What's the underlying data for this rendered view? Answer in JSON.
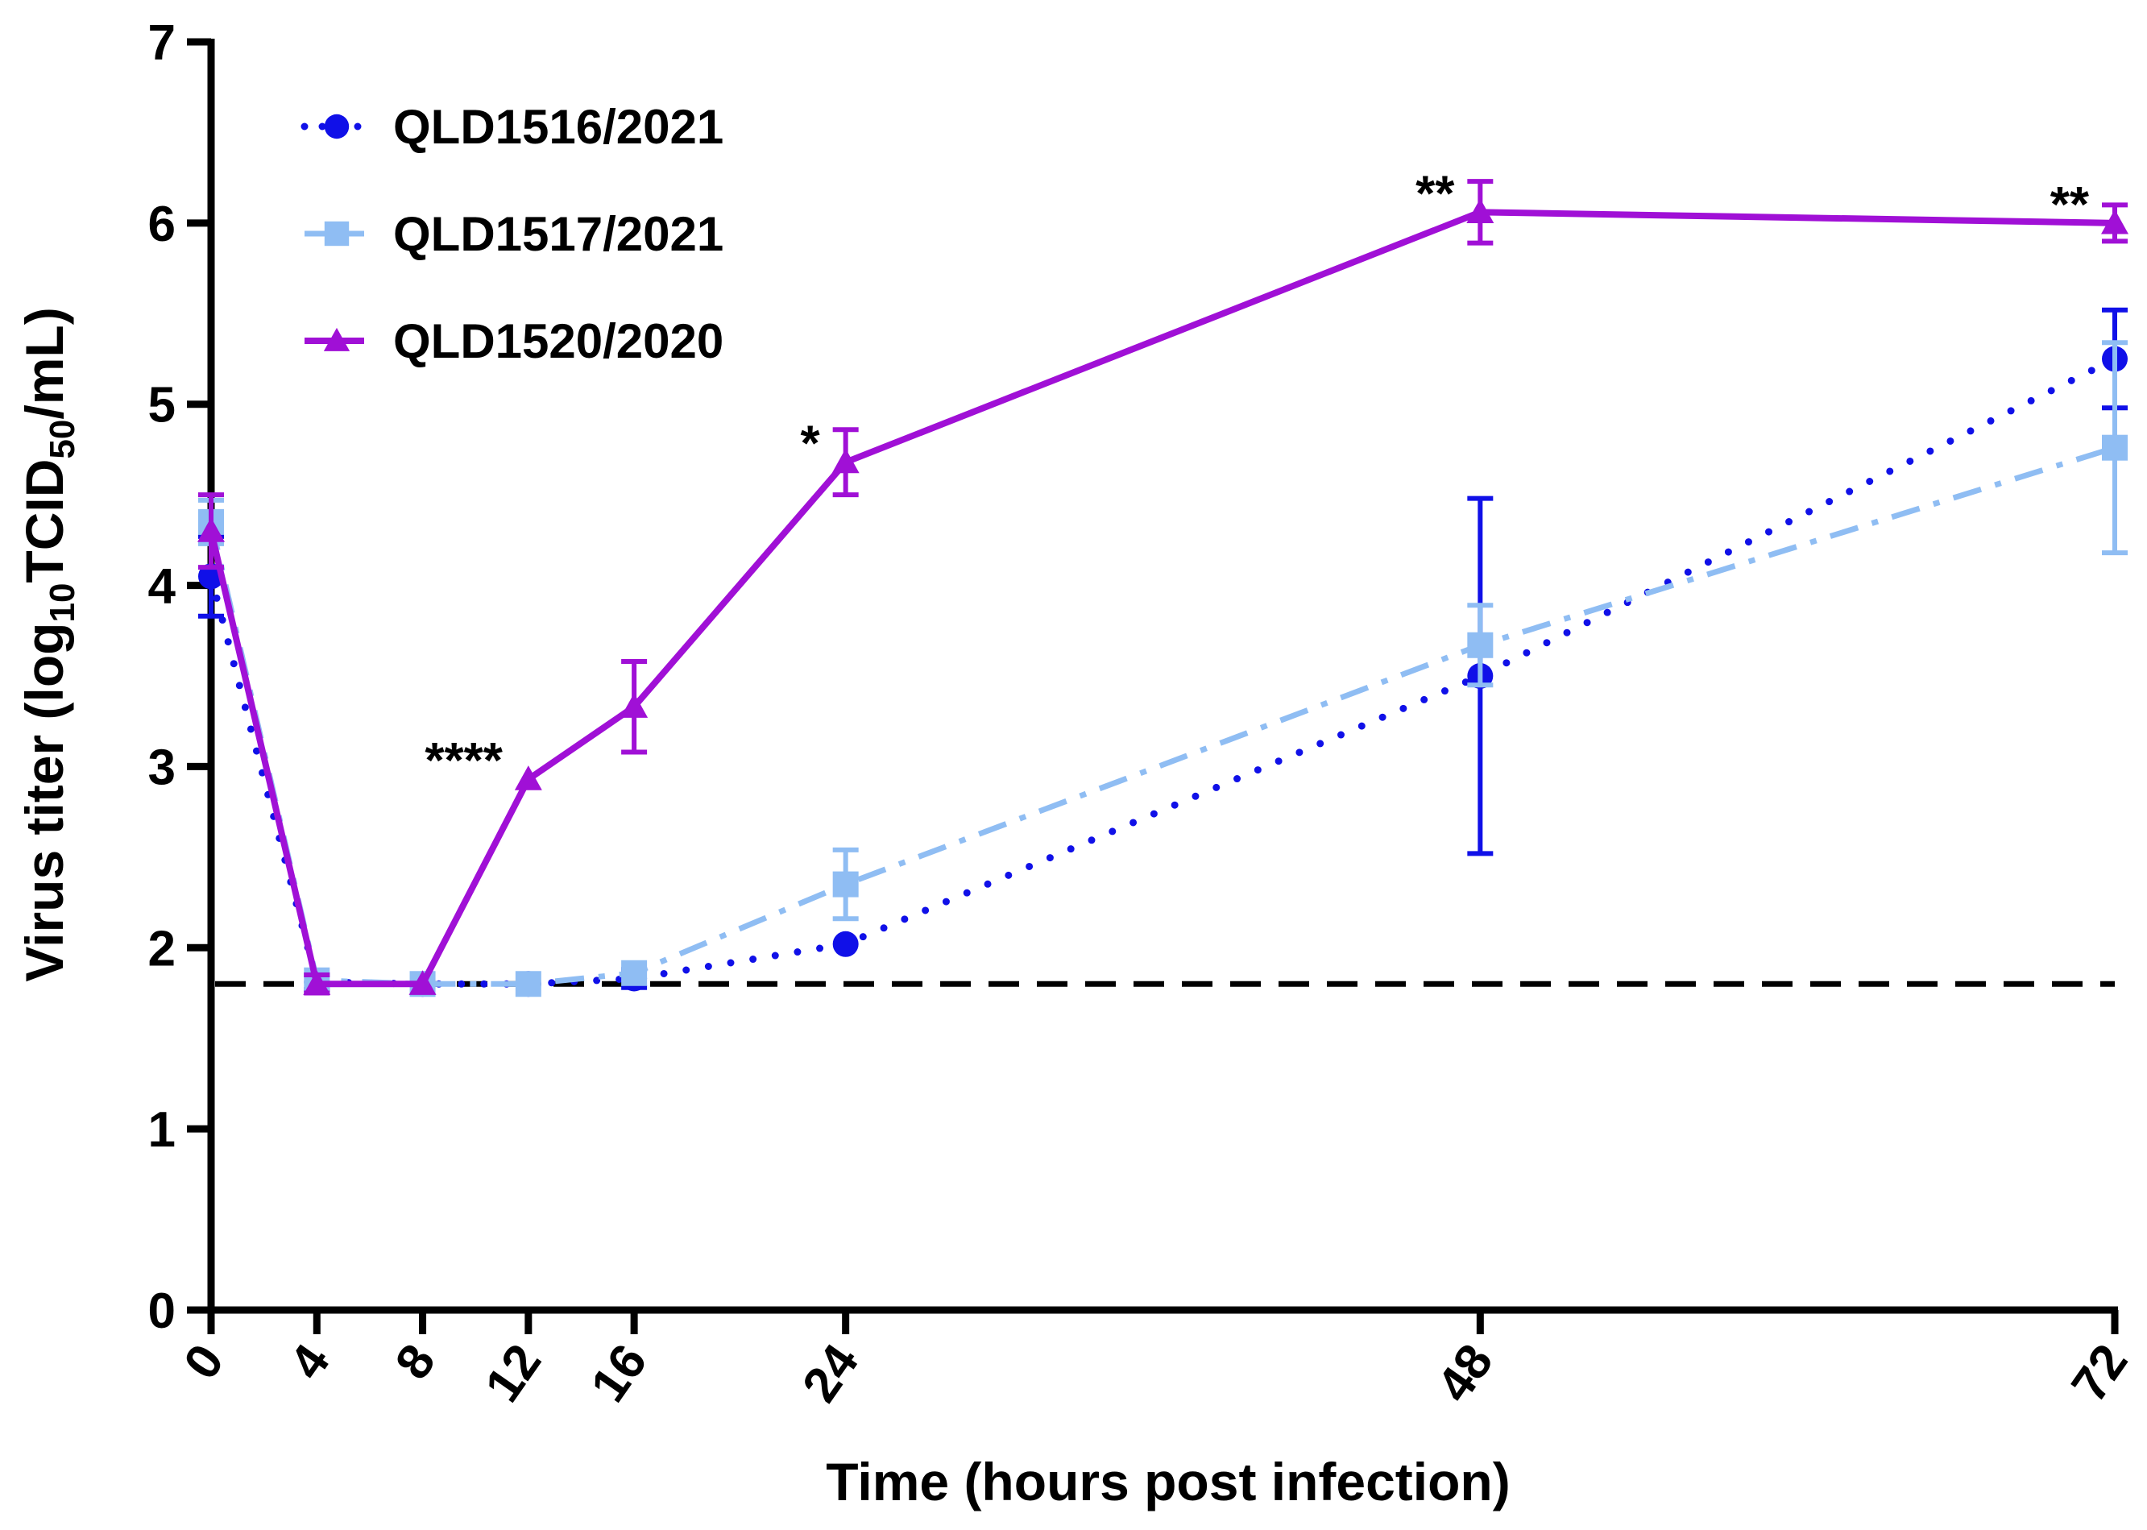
{
  "chart_data": {
    "type": "line",
    "title": "",
    "xlabel": "Time (hours post infection)",
    "ylabel_main": "Virus titer (log",
    "ylabel_sub1": "10",
    "ylabel_mid": "TCID",
    "ylabel_sub2": "50",
    "ylabel_end": "/mL)",
    "x": [
      0,
      4,
      8,
      12,
      16,
      24,
      48,
      72
    ],
    "x_tick_labels": [
      "0",
      "4",
      "8",
      "12",
      "16",
      "24",
      "48",
      "72"
    ],
    "y_tick_labels": [
      "0",
      "1",
      "2",
      "3",
      "4",
      "5",
      "6",
      "7"
    ],
    "xlim": [
      0,
      72
    ],
    "ylim": [
      0,
      7
    ],
    "detection_limit": 1.8,
    "legend_position": "top-left",
    "series": [
      {
        "name": "QLD1516/2021",
        "color": "#1010e8",
        "line_style": "dotted",
        "marker": "circle",
        "values": [
          4.05,
          1.81,
          1.8,
          1.8,
          1.83,
          2.02,
          3.5,
          5.25
        ],
        "error": [
          0.22,
          0.04,
          0.02,
          0.02,
          0.05,
          0.0,
          0.98,
          0.27
        ]
      },
      {
        "name": "QLD1517/2021",
        "color": "#8fbdf3",
        "line_style": "dash-dot",
        "marker": "square",
        "values": [
          4.35,
          1.82,
          1.8,
          1.8,
          1.86,
          2.35,
          3.67,
          4.76
        ],
        "error": [
          0.12,
          0.03,
          0.02,
          0.02,
          0.03,
          0.19,
          0.22,
          0.58
        ]
      },
      {
        "name": "QLD1520/2020",
        "color": "#a010d6",
        "line_style": "solid",
        "marker": "triangle",
        "values": [
          4.3,
          1.8,
          1.8,
          2.93,
          3.33,
          4.68,
          6.06,
          6.0
        ],
        "error": [
          0.2,
          0.05,
          0.02,
          0.03,
          0.25,
          0.18,
          0.17,
          0.1
        ]
      }
    ],
    "annotations": [
      {
        "text": "****",
        "x": 12,
        "y": 2.93
      },
      {
        "text": "*",
        "x": 24,
        "y": 4.68
      },
      {
        "text": "**",
        "x": 48,
        "y": 6.06
      },
      {
        "text": "**",
        "x": 72,
        "y": 6.0
      }
    ]
  }
}
